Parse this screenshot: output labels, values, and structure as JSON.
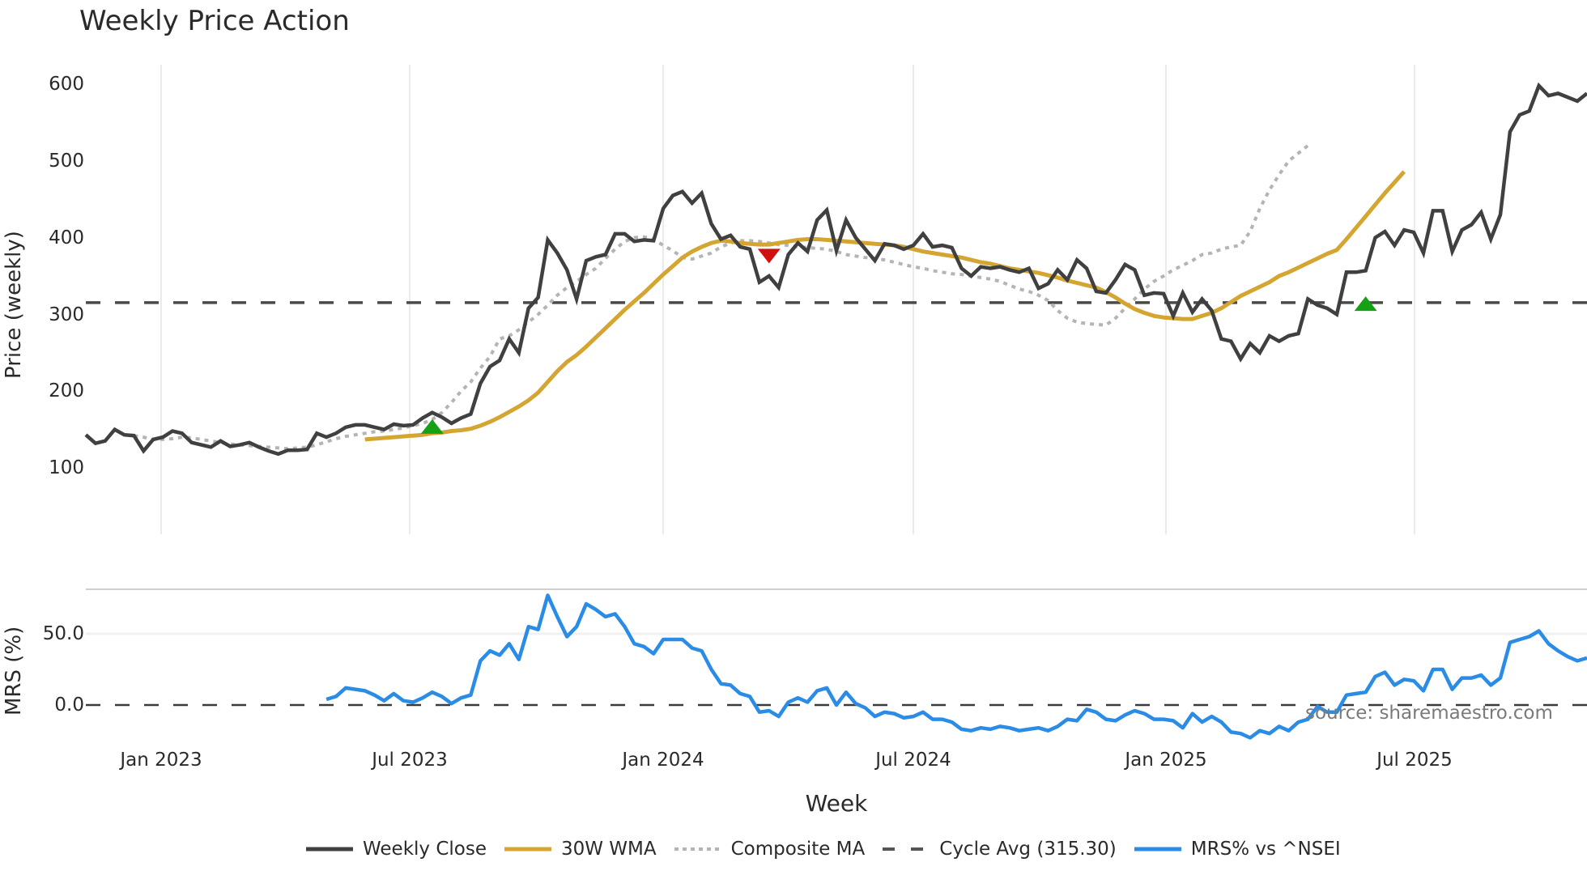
{
  "title": "Weekly Price Action",
  "price_panel": {
    "ylabel": "Price (weekly)",
    "yticks": [
      "600",
      "500",
      "400",
      "300",
      "200",
      "100"
    ]
  },
  "mrs_panel": {
    "ylabel": "MRS (%)",
    "yticks": [
      "50.0",
      "0.0"
    ]
  },
  "xaxis": {
    "label": "Week",
    "ticks": [
      "Jan 2023",
      "Jul 2023",
      "Jan 2024",
      "Jul 2024",
      "Jan 2025",
      "Jul 2025"
    ]
  },
  "source": "source: sharemaestro.com",
  "legend": [
    {
      "label": "Weekly Close",
      "color": "#404040",
      "style": "solid"
    },
    {
      "label": "30W WMA",
      "color": "#d4a530",
      "style": "solid"
    },
    {
      "label": "Composite MA",
      "color": "#b4b4b4",
      "style": "dotted"
    },
    {
      "label": "Cycle Avg (315.30)",
      "color": "#555555",
      "style": "dashed"
    },
    {
      "label": "MRS% vs ^NSEI",
      "color": "#2b8ce6",
      "style": "solid"
    }
  ],
  "colors": {
    "close": "#404040",
    "wma": "#d4a530",
    "composite": "#b4b4b4",
    "cycle": "#4a4a4a",
    "mrs": "#2b8ce6",
    "buy": "#16a016",
    "sell": "#d01010",
    "grid": "#ebebeb"
  },
  "chart_data": [
    {
      "type": "line",
      "title": "Weekly Price Action",
      "xlabel": "Week",
      "ylabel": "Price (weekly)",
      "ylim": [
        90,
        620
      ],
      "x_ticks": [
        "Jan 2023",
        "Jul 2023",
        "Jan 2024",
        "Jul 2024",
        "Jan 2025",
        "Jul 2025"
      ],
      "grid": true,
      "legend_position": "bottom",
      "series": [
        {
          "name": "Weekly Close",
          "start_index": 0,
          "values": [
            143,
            132,
            135,
            150,
            143,
            142,
            122,
            137,
            140,
            148,
            145,
            133,
            130,
            127,
            135,
            128,
            130,
            133,
            127,
            122,
            118,
            123,
            123,
            124,
            145,
            140,
            145,
            153,
            156,
            156,
            153,
            150,
            157,
            155,
            156,
            165,
            172,
            166,
            158,
            165,
            170,
            210,
            232,
            240,
            268,
            250,
            308,
            322,
            397,
            380,
            358,
            320,
            370,
            375,
            378,
            405,
            405,
            395,
            397,
            396,
            438,
            455,
            460,
            445,
            458,
            418,
            398,
            403,
            388,
            385,
            342,
            350,
            335,
            378,
            393,
            382,
            423,
            436,
            383,
            423,
            400,
            385,
            370,
            392,
            390,
            385,
            390,
            405,
            388,
            390,
            387,
            360,
            350,
            362,
            360,
            362,
            358,
            355,
            360,
            334,
            340,
            358,
            345,
            371,
            360,
            330,
            328,
            345,
            365,
            358,
            325,
            328,
            327,
            298,
            328,
            303,
            320,
            305,
            268,
            265,
            242,
            262,
            250,
            272,
            265,
            272,
            275,
            320,
            312,
            308,
            300,
            355,
            355,
            357,
            400,
            408,
            390,
            410,
            407,
            380,
            435,
            435,
            382,
            410,
            417,
            433,
            398,
            430,
            538,
            560,
            565,
            598,
            585,
            588,
            583,
            578,
            588
          ]
        },
        {
          "name": "30W WMA",
          "start_index": 29,
          "values": [
            137,
            138,
            139,
            140,
            141,
            142,
            143,
            145,
            146,
            148,
            149,
            151,
            155,
            160,
            166,
            173,
            180,
            188,
            198,
            212,
            226,
            238,
            247,
            258,
            270,
            282,
            294,
            306,
            317,
            328,
            340,
            352,
            363,
            374,
            382,
            388,
            393,
            396,
            395,
            393,
            392,
            391,
            391,
            393,
            395,
            397,
            398,
            398,
            397,
            396,
            395,
            394,
            393,
            392,
            391,
            390,
            388,
            385,
            382,
            380,
            378,
            376,
            374,
            371,
            368,
            366,
            363,
            360,
            358,
            356,
            354,
            351,
            348,
            344,
            341,
            338,
            335,
            329,
            322,
            314,
            307,
            302,
            298,
            296,
            295,
            294,
            294,
            298,
            302,
            308,
            316,
            324,
            330,
            336,
            342,
            350,
            355,
            361,
            367,
            373,
            379,
            384,
            398,
            413,
            428,
            443,
            458,
            472,
            486
          ]
        },
        {
          "name": "Composite MA",
          "start_index": 5,
          "values": [
            142,
            140,
            137,
            137,
            138,
            140,
            139,
            137,
            135,
            133,
            131,
            130,
            129,
            128,
            127,
            126,
            125,
            126,
            127,
            130,
            134,
            138,
            141,
            143,
            145,
            147,
            148,
            150,
            152,
            155,
            158,
            163,
            172,
            185,
            200,
            212,
            230,
            245,
            268,
            272,
            280,
            290,
            300,
            312,
            325,
            335,
            343,
            352,
            360,
            373,
            385,
            395,
            400,
            401,
            398,
            390,
            383,
            374,
            372,
            376,
            380,
            388,
            393,
            396,
            396,
            395,
            393,
            391,
            390,
            388,
            387,
            386,
            385,
            382,
            378,
            376,
            374,
            373,
            371,
            368,
            365,
            362,
            360,
            357,
            355,
            353,
            352,
            350,
            348,
            346,
            343,
            338,
            333,
            330,
            325,
            318,
            305,
            295,
            290,
            288,
            287,
            286,
            295,
            308,
            320,
            333,
            343,
            350,
            358,
            364,
            370,
            378,
            380,
            385,
            388,
            390,
            408,
            438,
            462,
            482,
            500,
            510,
            520
          ]
        },
        {
          "name": "Cycle Avg (315.30)",
          "values": [
            315.3
          ],
          "style": "horizontal-dashed"
        }
      ],
      "annotations": [
        {
          "type": "buy-signal",
          "marker": "green-triangle-up",
          "index": 36,
          "value": 155
        },
        {
          "type": "sell-signal",
          "marker": "red-triangle-down",
          "index": 71,
          "value": 377
        },
        {
          "type": "buy-signal",
          "marker": "green-triangle-up",
          "index": 133,
          "value": 315
        }
      ]
    },
    {
      "type": "line",
      "title": "",
      "xlabel": "Week",
      "ylabel": "MRS (%)",
      "ylim": [
        -32,
        82
      ],
      "y_ticks": [
        0,
        50
      ],
      "grid": true,
      "series": [
        {
          "name": "MRS% vs ^NSEI",
          "start_index": 25,
          "values": [
            4,
            6,
            12,
            11,
            10,
            7,
            3,
            8,
            3,
            2,
            5,
            9,
            6,
            1,
            5,
            7,
            31,
            38,
            35,
            43,
            32,
            55,
            53,
            77,
            62,
            48,
            55,
            71,
            67,
            62,
            64,
            55,
            43,
            41,
            36,
            46,
            46,
            46,
            40,
            38,
            25,
            15,
            14,
            8,
            6,
            -5,
            -4,
            -8,
            2,
            5,
            2,
            10,
            12,
            0,
            9,
            1,
            -2,
            -8,
            -5,
            -6,
            -9,
            -8,
            -5,
            -10,
            -10,
            -12,
            -17,
            -18,
            -16,
            -17,
            -15,
            -16,
            -18,
            -17,
            -16,
            -18,
            -15,
            -10,
            -11,
            -3,
            -5,
            -10,
            -11,
            -7,
            -4,
            -6,
            -10,
            -10,
            -11,
            -16,
            -6,
            -12,
            -8,
            -12,
            -19,
            -20,
            -23,
            -18,
            -20,
            -15,
            -18,
            -12,
            -10,
            -1,
            -5,
            -5,
            7,
            8,
            9,
            20,
            23,
            14,
            18,
            17,
            10,
            25,
            25,
            11,
            19,
            19,
            21,
            14,
            19,
            44,
            46,
            48,
            52,
            43,
            38,
            34,
            31,
            33
          ]
        }
      ]
    }
  ]
}
